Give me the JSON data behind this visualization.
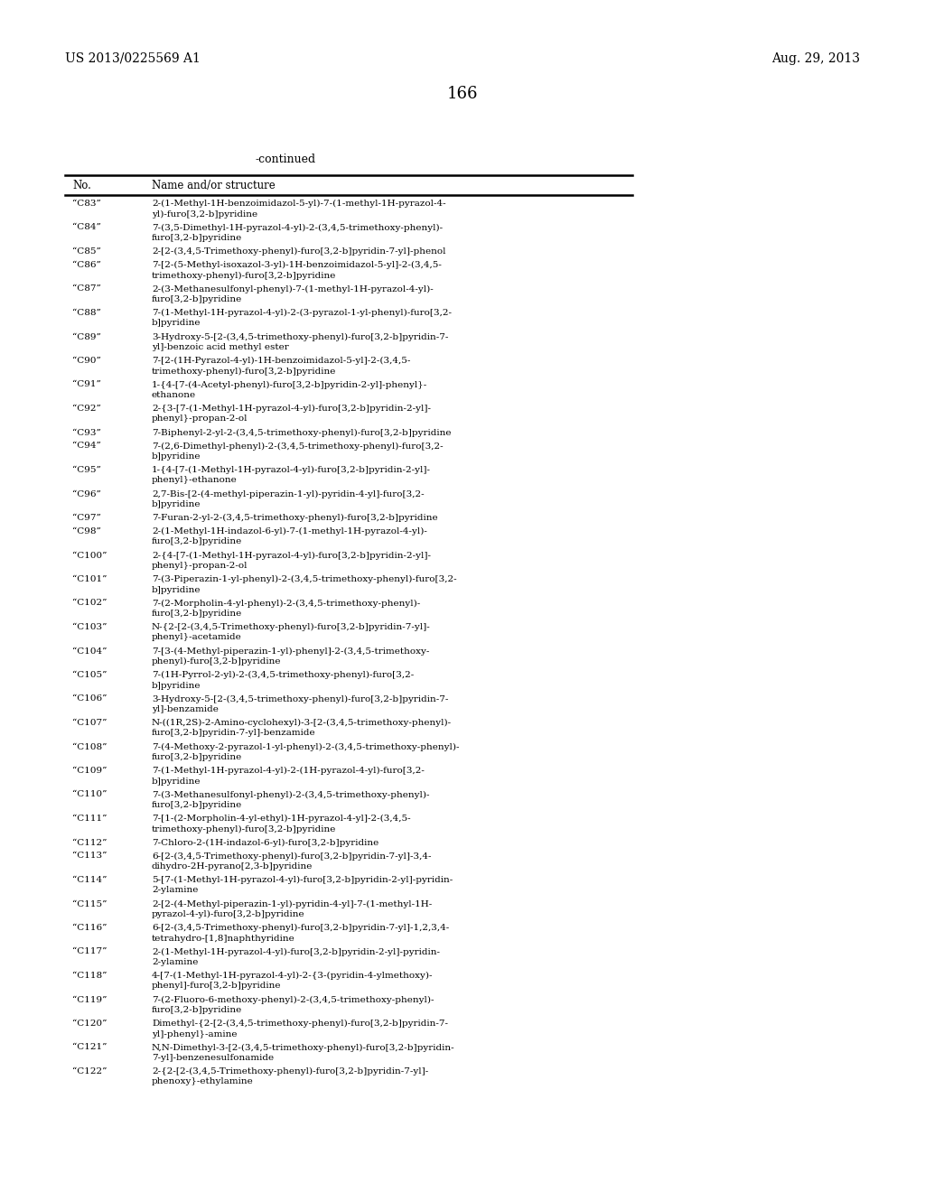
{
  "header_left": "US 2013/0225569 A1",
  "header_right": "Aug. 29, 2013",
  "page_number": "166",
  "continued_label": "-continued",
  "col1_header": "No.",
  "col2_header": "Name and/or structure",
  "background_color": "#ffffff",
  "text_color": "#000000",
  "font_size": 7.5,
  "entries": [
    [
      "“C83”",
      "2-(1-Methyl-1H-benzoimidazol-5-yl)-7-(1-methyl-1H-pyrazol-4-\nyl)-furo[3,2-b]pyridine"
    ],
    [
      "“C84”",
      "7-(3,5-Dimethyl-1H-pyrazol-4-yl)-2-(3,4,5-trimethoxy-phenyl)-\nfuro[3,2-b]pyridine"
    ],
    [
      "“C85”",
      "2-[2-(3,4,5-Trimethoxy-phenyl)-furo[3,2-b]pyridin-7-yl]-phenol"
    ],
    [
      "“C86”",
      "7-[2-(5-Methyl-isoxazol-3-yl)-1H-benzoimidazol-5-yl]-2-(3,4,5-\ntrimethoxy-phenyl)-furo[3,2-b]pyridine"
    ],
    [
      "“C87”",
      "2-(3-Methanesulfonyl-phenyl)-7-(1-methyl-1H-pyrazol-4-yl)-\nfuro[3,2-b]pyridine"
    ],
    [
      "“C88”",
      "7-(1-Methyl-1H-pyrazol-4-yl)-2-(3-pyrazol-1-yl-phenyl)-furo[3,2-\nb]pyridine"
    ],
    [
      "“C89”",
      "3-Hydroxy-5-[2-(3,4,5-trimethoxy-phenyl)-furo[3,2-b]pyridin-7-\nyl]-benzoic acid methyl ester"
    ],
    [
      "“C90”",
      "7-[2-(1H-Pyrazol-4-yl)-1H-benzoimidazol-5-yl]-2-(3,4,5-\ntrimethoxy-phenyl)-furo[3,2-b]pyridine"
    ],
    [
      "“C91”",
      "1-{4-[7-(4-Acetyl-phenyl)-furo[3,2-b]pyridin-2-yl]-phenyl}-\nethanone"
    ],
    [
      "“C92”",
      "2-{3-[7-(1-Methyl-1H-pyrazol-4-yl)-furo[3,2-b]pyridin-2-yl]-\nphenyl}-propan-2-ol"
    ],
    [
      "“C93”",
      "7-Biphenyl-2-yl-2-(3,4,5-trimethoxy-phenyl)-furo[3,2-b]pyridine"
    ],
    [
      "“C94”",
      "7-(2,6-Dimethyl-phenyl)-2-(3,4,5-trimethoxy-phenyl)-furo[3,2-\nb]pyridine"
    ],
    [
      "“C95”",
      "1-{4-[7-(1-Methyl-1H-pyrazol-4-yl)-furo[3,2-b]pyridin-2-yl]-\nphenyl}-ethanone"
    ],
    [
      "“C96”",
      "2,7-Bis-[2-(4-methyl-piperazin-1-yl)-pyridin-4-yl]-furo[3,2-\nb]pyridine"
    ],
    [
      "“C97”",
      "7-Furan-2-yl-2-(3,4,5-trimethoxy-phenyl)-furo[3,2-b]pyridine"
    ],
    [
      "“C98”",
      "2-(1-Methyl-1H-indazol-6-yl)-7-(1-methyl-1H-pyrazol-4-yl)-\nfuro[3,2-b]pyridine"
    ],
    [
      "“C100”",
      "2-{4-[7-(1-Methyl-1H-pyrazol-4-yl)-furo[3,2-b]pyridin-2-yl]-\nphenyl}-propan-2-ol"
    ],
    [
      "“C101”",
      "7-(3-Piperazin-1-yl-phenyl)-2-(3,4,5-trimethoxy-phenyl)-furo[3,2-\nb]pyridine"
    ],
    [
      "“C102”",
      "7-(2-Morpholin-4-yl-phenyl)-2-(3,4,5-trimethoxy-phenyl)-\nfuro[3,2-b]pyridine"
    ],
    [
      "“C103”",
      "N-{2-[2-(3,4,5-Trimethoxy-phenyl)-furo[3,2-b]pyridin-7-yl]-\nphenyl}-acetamide"
    ],
    [
      "“C104”",
      "7-[3-(4-Methyl-piperazin-1-yl)-phenyl]-2-(3,4,5-trimethoxy-\nphenyl)-furo[3,2-b]pyridine"
    ],
    [
      "“C105”",
      "7-(1H-Pyrrol-2-yl)-2-(3,4,5-trimethoxy-phenyl)-furo[3,2-\nb]pyridine"
    ],
    [
      "“C106”",
      "3-Hydroxy-5-[2-(3,4,5-trimethoxy-phenyl)-furo[3,2-b]pyridin-7-\nyl]-benzamide"
    ],
    [
      "“C107”",
      "N-((1R,2S)-2-Amino-cyclohexyl)-3-[2-(3,4,5-trimethoxy-phenyl)-\nfuro[3,2-b]pyridin-7-yl]-benzamide"
    ],
    [
      "“C108”",
      "7-(4-Methoxy-2-pyrazol-1-yl-phenyl)-2-(3,4,5-trimethoxy-phenyl)-\nfuro[3,2-b]pyridine"
    ],
    [
      "“C109”",
      "7-(1-Methyl-1H-pyrazol-4-yl)-2-(1H-pyrazol-4-yl)-furo[3,2-\nb]pyridine"
    ],
    [
      "“C110”",
      "7-(3-Methanesulfonyl-phenyl)-2-(3,4,5-trimethoxy-phenyl)-\nfuro[3,2-b]pyridine"
    ],
    [
      "“C111”",
      "7-[1-(2-Morpholin-4-yl-ethyl)-1H-pyrazol-4-yl]-2-(3,4,5-\ntrimethoxy-phenyl)-furo[3,2-b]pyridine"
    ],
    [
      "“C112”",
      "7-Chloro-2-(1H-indazol-6-yl)-furo[3,2-b]pyridine"
    ],
    [
      "“C113”",
      "6-[2-(3,4,5-Trimethoxy-phenyl)-furo[3,2-b]pyridin-7-yl]-3,4-\ndihydro-2H-pyrano[2,3-b]pyridine"
    ],
    [
      "“C114”",
      "5-[7-(1-Methyl-1H-pyrazol-4-yl)-furo[3,2-b]pyridin-2-yl]-pyridin-\n2-ylamine"
    ],
    [
      "“C115”",
      "2-[2-(4-Methyl-piperazin-1-yl)-pyridin-4-yl]-7-(1-methyl-1H-\npyrazol-4-yl)-furo[3,2-b]pyridine"
    ],
    [
      "“C116”",
      "6-[2-(3,4,5-Trimethoxy-phenyl)-furo[3,2-b]pyridin-7-yl]-1,2,3,4-\ntetrahydro-[1,8]naphthyridine"
    ],
    [
      "“C117”",
      "2-(1-Methyl-1H-pyrazol-4-yl)-furo[3,2-b]pyridin-2-yl]-pyridin-\n2-ylamine"
    ],
    [
      "“C118”",
      "4-[7-(1-Methyl-1H-pyrazol-4-yl)-2-{3-(pyridin-4-ylmethoxy)-\nphenyl]-furo[3,2-b]pyridine"
    ],
    [
      "“C119”",
      "7-(2-Fluoro-6-methoxy-phenyl)-2-(3,4,5-trimethoxy-phenyl)-\nfuro[3,2-b]pyridine"
    ],
    [
      "“C120”",
      "Dimethyl-{2-[2-(3,4,5-trimethoxy-phenyl)-furo[3,2-b]pyridin-7-\nyl]-phenyl}-amine"
    ],
    [
      "“C121”",
      "N,N-Dimethyl-3-[2-(3,4,5-trimethoxy-phenyl)-furo[3,2-b]pyridin-\n7-yl]-benzenesulfonamide"
    ],
    [
      "“C122”",
      "2-{2-[2-(3,4,5-Trimethoxy-phenyl)-furo[3,2-b]pyridin-7-yl]-\nphenoxy}-ethylamine"
    ]
  ]
}
